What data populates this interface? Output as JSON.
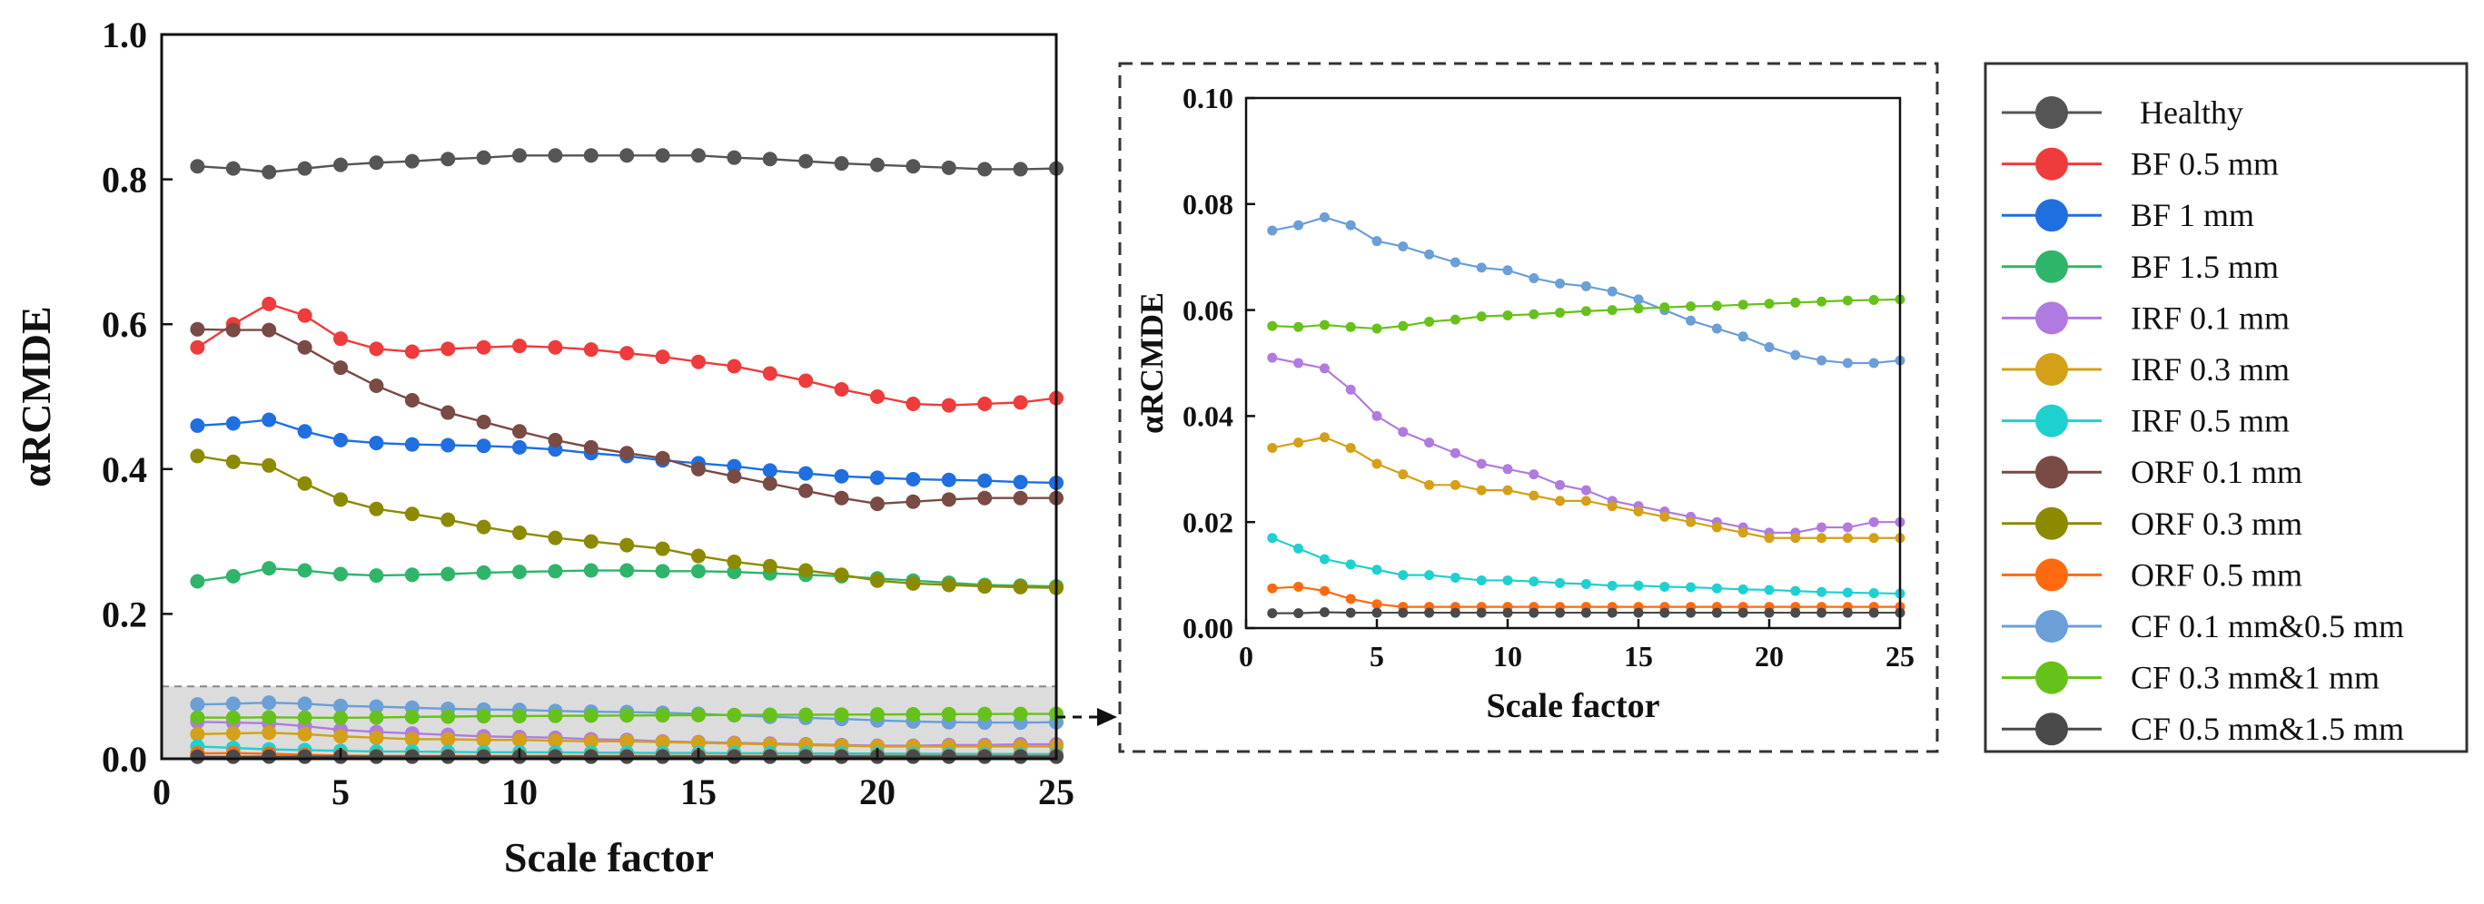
{
  "chart_data": [
    {
      "type": "line",
      "panel": "main",
      "xlabel": "Scale factor",
      "ylabel": "αRCMDE",
      "xlim": [
        0,
        25
      ],
      "ylim": [
        0,
        1.0
      ],
      "xticks": [
        0,
        5,
        10,
        15,
        20,
        25
      ],
      "yticks": [
        "0.0",
        "0.2",
        "0.4",
        "0.6",
        "0.8",
        "1.0"
      ],
      "grid": false,
      "highlight_band": [
        0,
        0.1
      ],
      "x": [
        1,
        2,
        3,
        4,
        5,
        6,
        7,
        8,
        9,
        10,
        11,
        12,
        13,
        14,
        15,
        16,
        17,
        18,
        19,
        20,
        21,
        22,
        23,
        24,
        25
      ],
      "series": [
        {
          "name": "Healthy",
          "color": "#555555",
          "values": [
            0.818,
            0.815,
            0.81,
            0.815,
            0.82,
            0.823,
            0.825,
            0.828,
            0.83,
            0.833,
            0.833,
            0.833,
            0.833,
            0.833,
            0.833,
            0.83,
            0.828,
            0.825,
            0.822,
            0.82,
            0.818,
            0.816,
            0.814,
            0.814,
            0.815
          ]
        },
        {
          "name": "BF 0.5 mm",
          "color": "#ee3b3b",
          "values": [
            0.568,
            0.6,
            0.628,
            0.612,
            0.58,
            0.566,
            0.562,
            0.566,
            0.568,
            0.57,
            0.568,
            0.565,
            0.56,
            0.555,
            0.548,
            0.542,
            0.532,
            0.522,
            0.51,
            0.5,
            0.49,
            0.488,
            0.49,
            0.492,
            0.498
          ]
        },
        {
          "name": "BF 1 mm",
          "color": "#1f6fe0",
          "values": [
            0.46,
            0.463,
            0.468,
            0.452,
            0.44,
            0.436,
            0.434,
            0.433,
            0.432,
            0.43,
            0.427,
            0.422,
            0.418,
            0.412,
            0.408,
            0.404,
            0.398,
            0.394,
            0.39,
            0.388,
            0.386,
            0.385,
            0.384,
            0.382,
            0.381
          ]
        },
        {
          "name": "BF 1.5 mm",
          "color": "#2fb56a",
          "values": [
            0.245,
            0.252,
            0.263,
            0.26,
            0.255,
            0.253,
            0.254,
            0.255,
            0.257,
            0.258,
            0.259,
            0.26,
            0.26,
            0.259,
            0.259,
            0.258,
            0.256,
            0.254,
            0.252,
            0.249,
            0.246,
            0.243,
            0.24,
            0.239,
            0.238
          ]
        },
        {
          "name": "IRF 0.1 mm",
          "color": "#b07be0",
          "values": [
            0.051,
            0.05,
            0.049,
            0.045,
            0.04,
            0.037,
            0.035,
            0.033,
            0.031,
            0.03,
            0.029,
            0.027,
            0.026,
            0.024,
            0.023,
            0.022,
            0.021,
            0.02,
            0.019,
            0.018,
            0.018,
            0.019,
            0.019,
            0.02,
            0.02
          ]
        },
        {
          "name": "IRF 0.3 mm",
          "color": "#d4a017",
          "values": [
            0.034,
            0.035,
            0.036,
            0.034,
            0.031,
            0.029,
            0.027,
            0.027,
            0.026,
            0.026,
            0.025,
            0.024,
            0.024,
            0.023,
            0.022,
            0.021,
            0.02,
            0.019,
            0.018,
            0.017,
            0.017,
            0.017,
            0.017,
            0.017,
            0.017
          ]
        },
        {
          "name": "IRF 0.5 mm",
          "color": "#1fd0d0",
          "values": [
            0.017,
            0.015,
            0.013,
            0.012,
            0.011,
            0.01,
            0.01,
            0.0095,
            0.009,
            0.009,
            0.0088,
            0.0085,
            0.0083,
            0.008,
            0.008,
            0.0078,
            0.0077,
            0.0075,
            0.0073,
            0.0072,
            0.007,
            0.0068,
            0.0067,
            0.0066,
            0.0065
          ]
        },
        {
          "name": "ORF 0.1 mm",
          "color": "#7a4a45",
          "values": [
            0.593,
            0.592,
            0.592,
            0.568,
            0.54,
            0.515,
            0.495,
            0.478,
            0.465,
            0.452,
            0.44,
            0.43,
            0.422,
            0.415,
            0.4,
            0.39,
            0.38,
            0.37,
            0.36,
            0.352,
            0.355,
            0.358,
            0.36,
            0.36,
            0.36
          ]
        },
        {
          "name": "ORF 0.3 mm",
          "color": "#8c8a00",
          "values": [
            0.418,
            0.41,
            0.405,
            0.38,
            0.358,
            0.345,
            0.338,
            0.33,
            0.32,
            0.312,
            0.305,
            0.3,
            0.295,
            0.29,
            0.28,
            0.272,
            0.266,
            0.26,
            0.254,
            0.246,
            0.242,
            0.24,
            0.238,
            0.237,
            0.236
          ]
        },
        {
          "name": "ORF 0.5 mm",
          "color": "#ff6a10",
          "values": [
            0.0075,
            0.0078,
            0.007,
            0.0055,
            0.0045,
            0.004,
            0.004,
            0.004,
            0.004,
            0.004,
            0.004,
            0.004,
            0.004,
            0.004,
            0.004,
            0.004,
            0.004,
            0.004,
            0.004,
            0.004,
            0.004,
            0.004,
            0.004,
            0.004,
            0.004
          ]
        },
        {
          "name": "CF 0.1 mm&0.5 mm",
          "color": "#6a9fd8",
          "values": [
            0.075,
            0.076,
            0.0775,
            0.076,
            0.073,
            0.072,
            0.0705,
            0.069,
            0.068,
            0.0675,
            0.066,
            0.065,
            0.0645,
            0.0635,
            0.062,
            0.06,
            0.058,
            0.0565,
            0.055,
            0.053,
            0.0515,
            0.0505,
            0.05,
            0.05,
            0.0505
          ]
        },
        {
          "name": "CF 0.3 mm&1 mm",
          "color": "#66c21a",
          "values": [
            0.057,
            0.0568,
            0.0572,
            0.0568,
            0.0565,
            0.057,
            0.0578,
            0.0582,
            0.0588,
            0.059,
            0.0592,
            0.0595,
            0.0598,
            0.06,
            0.0603,
            0.0605,
            0.0607,
            0.0608,
            0.061,
            0.0612,
            0.0614,
            0.0616,
            0.0618,
            0.0619,
            0.062
          ]
        },
        {
          "name": "CF 0.5 mm&1.5 mm",
          "color": "#4a4a4a",
          "values": [
            0.0028,
            0.0028,
            0.003,
            0.0029,
            0.0029,
            0.0029,
            0.0029,
            0.0029,
            0.0029,
            0.0029,
            0.0029,
            0.0029,
            0.0029,
            0.0029,
            0.0029,
            0.0029,
            0.0029,
            0.0029,
            0.0029,
            0.0029,
            0.0029,
            0.0029,
            0.0029,
            0.0029,
            0.0029
          ]
        }
      ]
    },
    {
      "type": "line",
      "panel": "inset",
      "xlabel": "Scale factor",
      "ylabel": "αRCMDE",
      "xlim": [
        0,
        25
      ],
      "ylim": [
        0,
        0.1
      ],
      "xticks": [
        0,
        5,
        10,
        15,
        20,
        25
      ],
      "yticks": [
        "0.00",
        "0.02",
        "0.04",
        "0.06",
        "0.08",
        "0.10"
      ],
      "grid": false,
      "series_names": [
        "IRF 0.1 mm",
        "IRF 0.3 mm",
        "IRF 0.5 mm",
        "ORF 0.5 mm",
        "CF 0.1 mm&0.5 mm",
        "CF 0.3 mm&1 mm",
        "CF 0.5 mm&1.5 mm"
      ]
    }
  ],
  "legend": {
    "placement": "right",
    "entries": [
      "Healthy",
      "BF 0.5 mm",
      "BF 1 mm",
      "BF 1.5 mm",
      "IRF 0.1 mm",
      "IRF 0.3 mm",
      "IRF 0.5 mm",
      "ORF 0.1 mm",
      "ORF 0.3 mm",
      "ORF 0.5 mm",
      "CF 0.1 mm&0.5 mm",
      "CF 0.3 mm&1 mm",
      "CF 0.5 mm&1.5 mm"
    ]
  }
}
